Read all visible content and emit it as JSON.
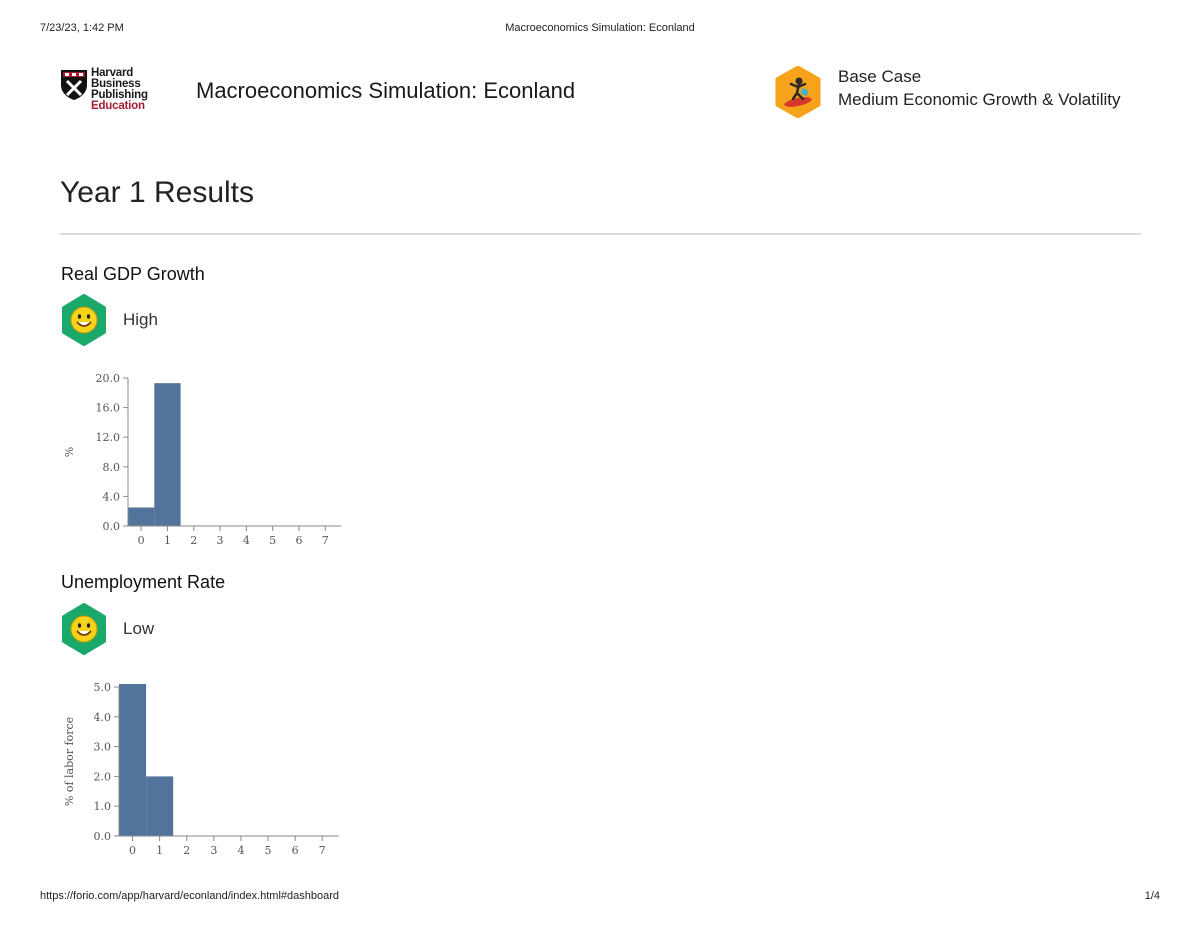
{
  "print_header": {
    "date": "7/23/23, 1:42 PM",
    "title": "Macroeconomics Simulation: Econland"
  },
  "logo": {
    "line1": "Harvard",
    "line2": "Business",
    "line3": "Publishing",
    "line4": "Education"
  },
  "app": {
    "title": "Macroeconomics Simulation: Econland"
  },
  "scenario": {
    "name": "Base Case",
    "description": "Medium Economic Growth & Volatility",
    "icon": "surfer-icon"
  },
  "page": {
    "heading": "Year 1 Results"
  },
  "sections": [
    {
      "title": "Real GDP Growth",
      "status": "High",
      "icon": "smiley-face-icon"
    },
    {
      "title": "Unemployment Rate",
      "status": "Low",
      "icon": "smiley-face-icon"
    }
  ],
  "colors": {
    "bar": "#52739a",
    "status_green": "#1aa86b",
    "smiley_yellow": "#f6d31d",
    "scenario_orange": "#f7a21b",
    "brand_red": "#a51c30"
  },
  "chart_data": [
    {
      "type": "bar",
      "title": "",
      "xlabel": "",
      "ylabel": "%",
      "categories": [
        "0",
        "1",
        "2",
        "3",
        "4",
        "5",
        "6",
        "7"
      ],
      "values": [
        2.5,
        19.3,
        0,
        0,
        0,
        0,
        0,
        0
      ],
      "ylim": [
        0,
        20
      ],
      "yticks": [
        "0.0",
        "4.0",
        "8.0",
        "12.0",
        "16.0",
        "20.0"
      ],
      "grid": false
    },
    {
      "type": "bar",
      "title": "",
      "xlabel": "",
      "ylabel": "% of labor force",
      "categories": [
        "0",
        "1",
        "2",
        "3",
        "4",
        "5",
        "6",
        "7"
      ],
      "values": [
        5.1,
        2.0,
        0,
        0,
        0,
        0,
        0,
        0
      ],
      "ylim": [
        0,
        5
      ],
      "yticks": [
        "0.0",
        "1.0",
        "2.0",
        "3.0",
        "4.0",
        "5.0"
      ],
      "grid": false
    }
  ],
  "print_footer": {
    "url": "https://forio.com/app/harvard/econland/index.html#dashboard",
    "page": "1/4"
  }
}
